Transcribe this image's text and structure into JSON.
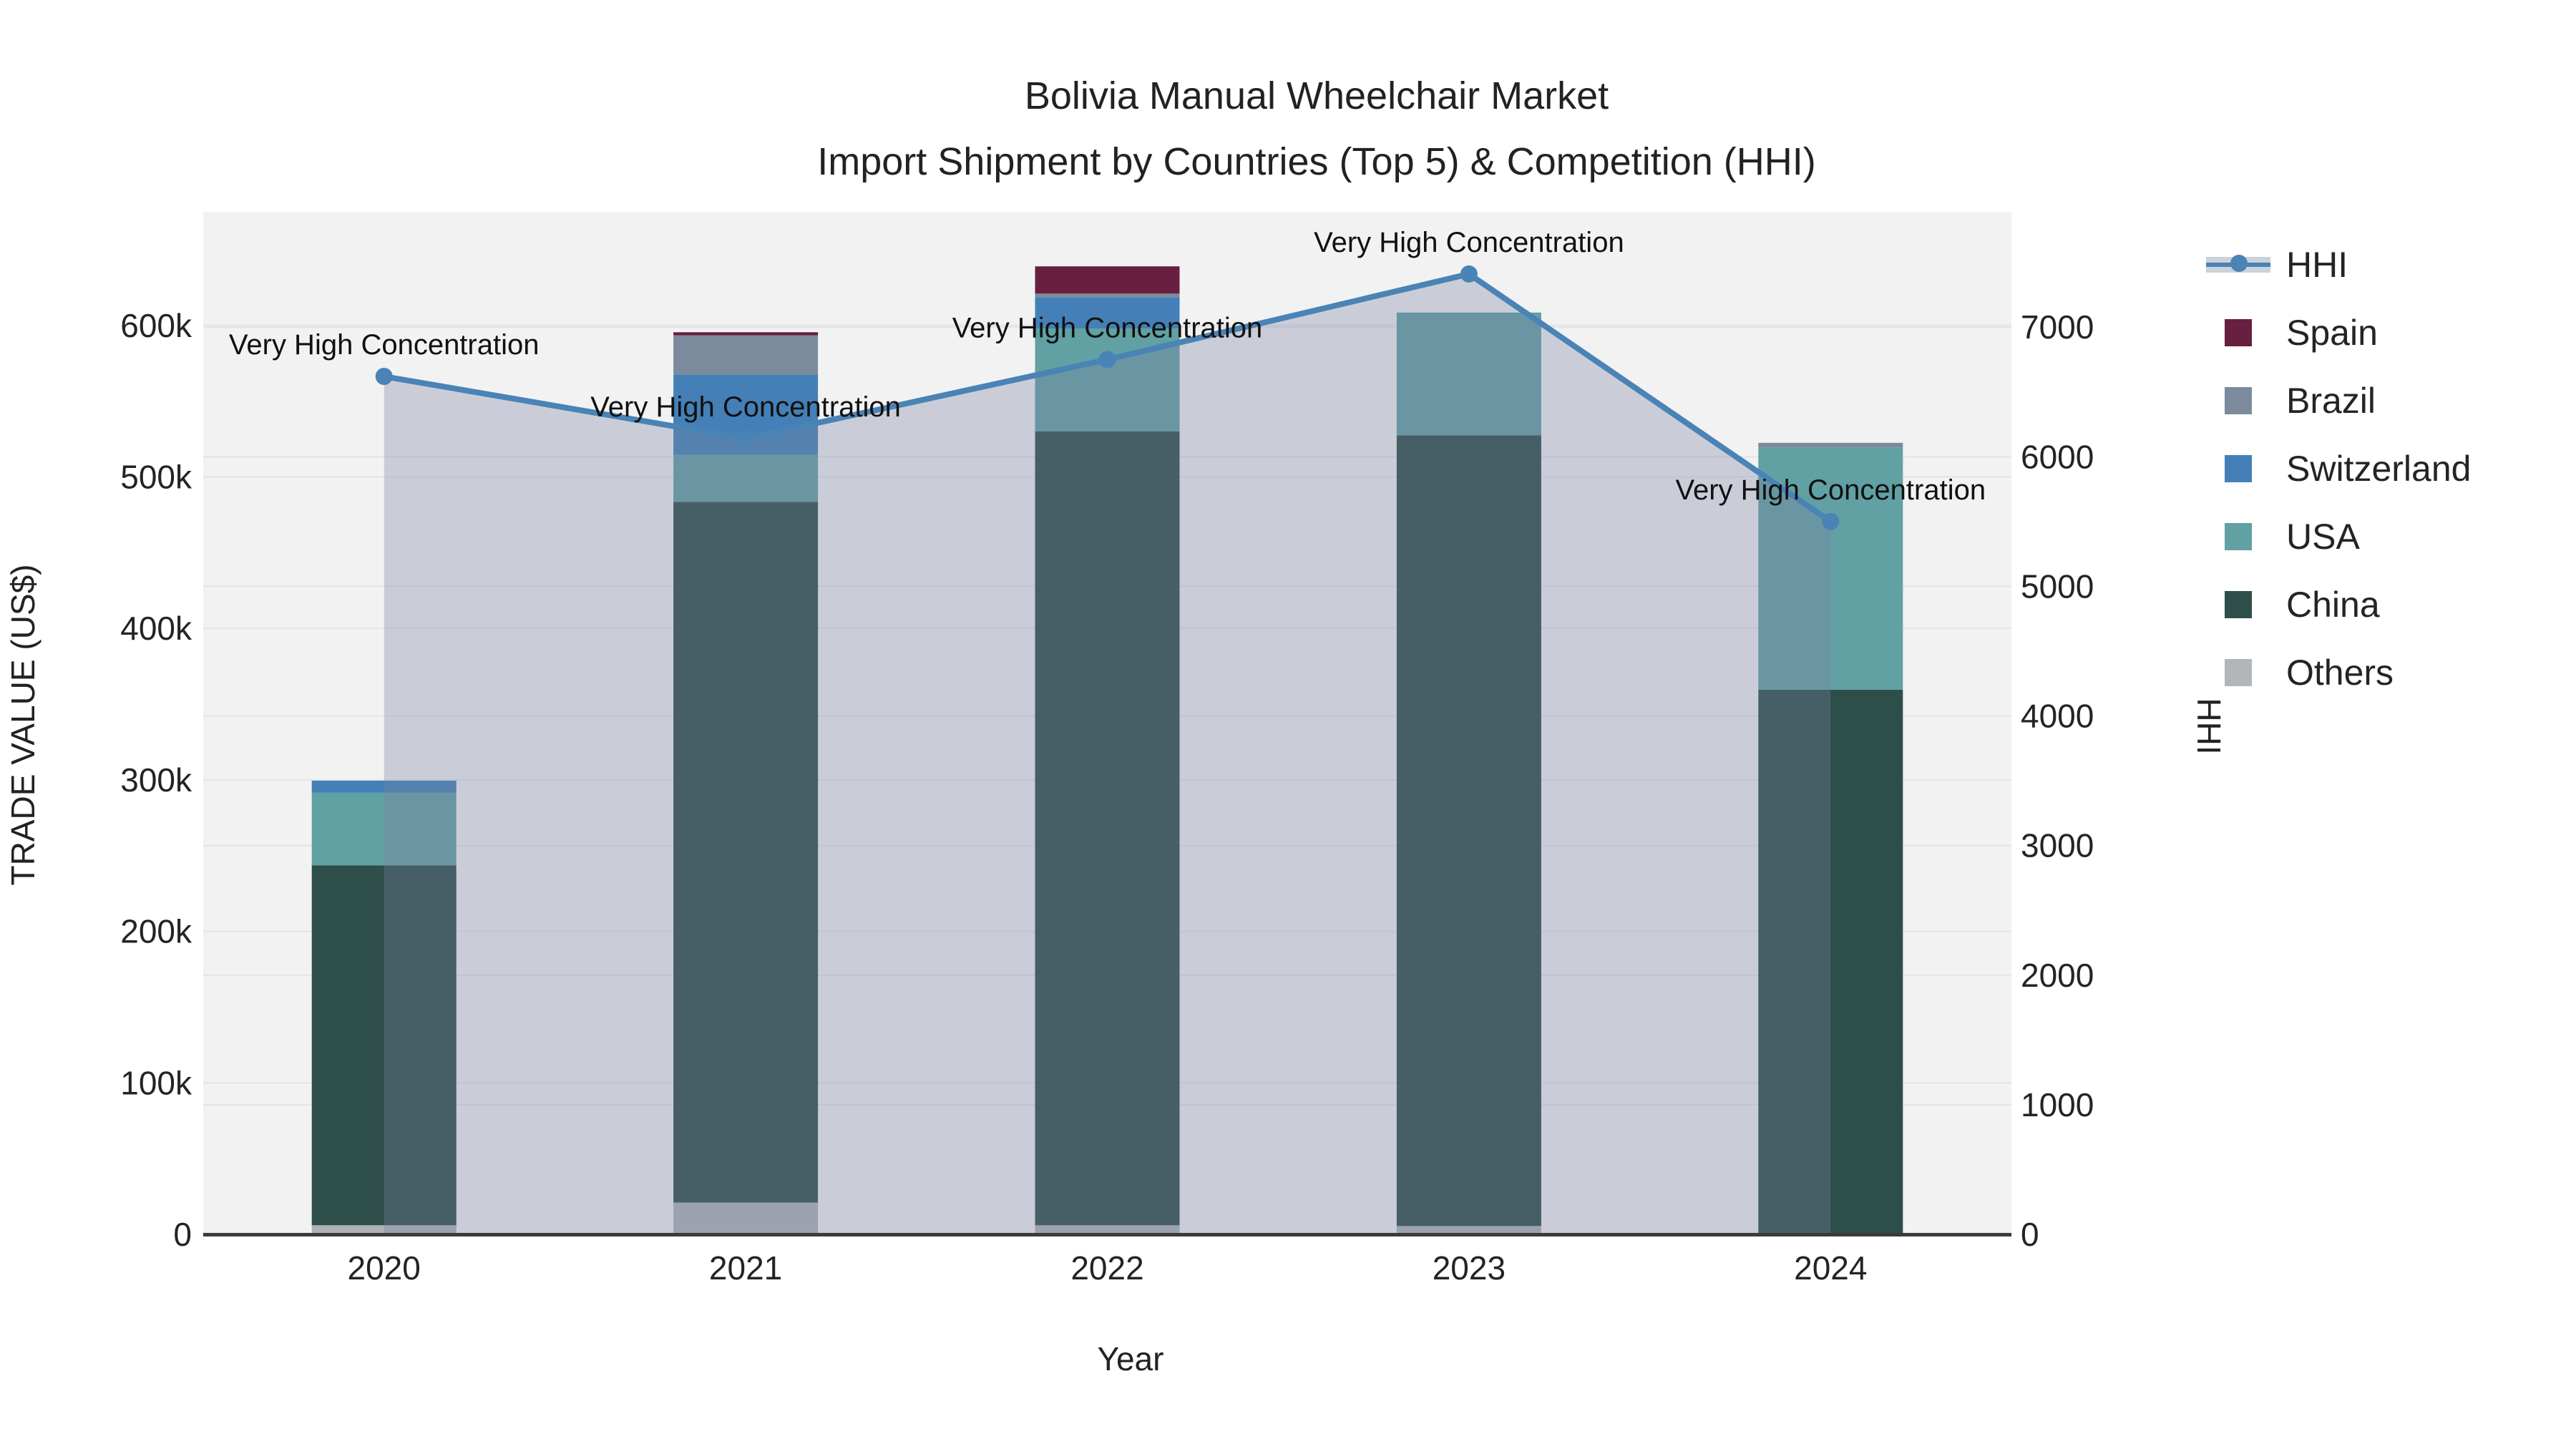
{
  "title": {
    "line1": "Bolivia Manual Wheelchair Market",
    "line2": "Import Shipment by Countries (Top 5) & Competition (HHI)"
  },
  "chart_data": {
    "type": "bar+line",
    "categories": [
      "2020",
      "2021",
      "2022",
      "2023",
      "2024"
    ],
    "bar_series": [
      {
        "name": "Others",
        "color": "#aeb2b5",
        "values": [
          6000,
          21000,
          6000,
          5500,
          0
        ]
      },
      {
        "name": "China",
        "color": "#2e4e49",
        "values": [
          237500,
          462500,
          524000,
          522000,
          359500
        ]
      },
      {
        "name": "USA",
        "color": "#61a0a3",
        "values": [
          48000,
          31000,
          68000,
          81000,
          160000
        ]
      },
      {
        "name": "Switzerland",
        "color": "#4480b7",
        "values": [
          8000,
          53000,
          20500,
          0,
          0
        ]
      },
      {
        "name": "Brazil",
        "color": "#7b8b9d",
        "values": [
          0,
          26000,
          2500,
          0,
          3000
        ]
      },
      {
        "name": "Spain",
        "color": "#67203f",
        "values": [
          0,
          2000,
          18000,
          0,
          0
        ]
      }
    ],
    "line_series": {
      "name": "HHI",
      "color": "#4a83b5",
      "area_fill_color": "rgba(120,130,160,0.33)",
      "values": [
        6620,
        6140,
        6750,
        7410,
        5500
      ]
    },
    "annotations": [
      "Very High Concentration",
      "Very High Concentration",
      "Very High Concentration",
      "Very High Concentration",
      "Very High Concentration"
    ],
    "xlabel": "Year",
    "ylabel_left": "TRADE VALUE (US$)",
    "ylabel_right": "HHI",
    "y_left": {
      "max": 675000,
      "ticks": [
        0,
        100000,
        200000,
        300000,
        400000,
        500000,
        600000
      ],
      "tick_labels": [
        "0",
        "100k",
        "200k",
        "300k",
        "400k",
        "500k",
        "600k"
      ]
    },
    "y_right": {
      "max": 7890,
      "ticks": [
        0,
        1000,
        2000,
        3000,
        4000,
        5000,
        6000,
        7000
      ],
      "tick_labels": [
        "0",
        "1000",
        "2000",
        "3000",
        "4000",
        "5000",
        "6000",
        "7000"
      ]
    },
    "grid": true,
    "legend_position": "right",
    "plot_bg": "#f2f2f3",
    "grid_color": "#e4e4e8",
    "axis_line_color": "#3b3b3b"
  },
  "legend": {
    "items": [
      {
        "label": "HHI",
        "type": "line",
        "color": "#4a83b5"
      },
      {
        "label": "Spain",
        "type": "swatch",
        "color": "#67203f"
      },
      {
        "label": "Brazil",
        "type": "swatch",
        "color": "#7b8b9d"
      },
      {
        "label": "Switzerland",
        "type": "swatch",
        "color": "#4480b7"
      },
      {
        "label": "USA",
        "type": "swatch",
        "color": "#61a0a3"
      },
      {
        "label": "China",
        "type": "swatch",
        "color": "#2e4e49"
      },
      {
        "label": "Others",
        "type": "swatch",
        "color": "#b2b6ba"
      }
    ]
  }
}
